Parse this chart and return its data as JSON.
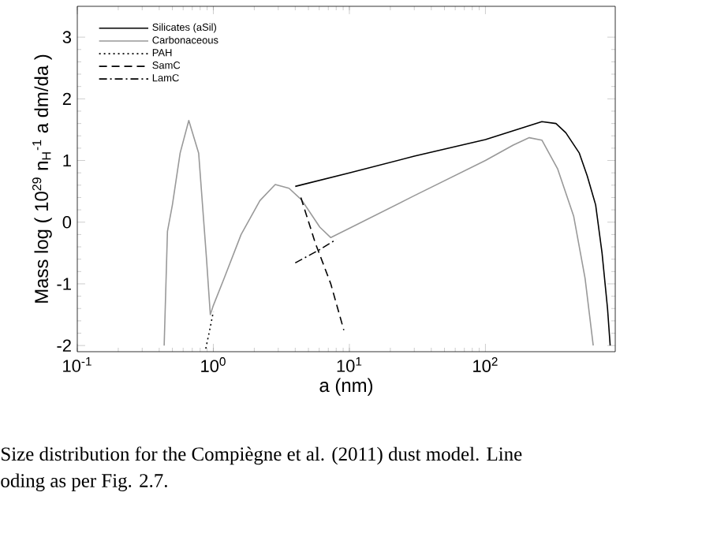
{
  "chart_data": {
    "type": "line",
    "xlabel": "a (nm)",
    "ylabel": "Mass log ( 10$^{29}$ n$_{H}$$^{-1}$ a dm/da )",
    "log": "x",
    "xlim": [
      0.1,
      900
    ],
    "ylim": [
      -2.1,
      3.5
    ],
    "xticks": [
      {
        "value": 0.1,
        "label": "10$^{-1}$"
      },
      {
        "value": 1,
        "label": "10$^{0}$"
      },
      {
        "value": 10,
        "label": "10$^{1}$"
      },
      {
        "value": 100,
        "label": "10$^{2}$"
      }
    ],
    "yticks": [
      -2,
      -1,
      0,
      1,
      2,
      3
    ],
    "legend": "top left",
    "series": [
      {
        "name": "Silicates (aSil)",
        "color": "#000000",
        "line_style": "solid",
        "x": [
          4.0,
          10,
          30,
          100,
          200,
          260,
          330,
          390,
          490,
          560,
          646,
          720,
          790,
          826
        ],
        "values": [
          0.58,
          0.8,
          1.07,
          1.34,
          1.55,
          1.63,
          1.6,
          1.45,
          1.12,
          0.75,
          0.28,
          -0.5,
          -1.4,
          -2.0
        ]
      },
      {
        "name": "Carbonaceous",
        "color": "#999999",
        "line_style": "solid",
        "x": [
          0.435,
          0.46,
          0.5,
          0.57,
          0.66,
          0.78,
          0.89,
          0.95,
          1.0,
          1.2,
          1.6,
          2.2,
          2.85,
          3.6,
          4.46,
          6.06,
          7.3,
          10,
          30,
          100,
          160,
          210,
          260,
          340,
          445,
          540,
          620
        ],
        "values": [
          -2.0,
          -0.15,
          0.28,
          1.12,
          1.65,
          1.12,
          -0.58,
          -1.5,
          -1.35,
          -0.91,
          -0.2,
          0.35,
          0.61,
          0.55,
          0.36,
          -0.08,
          -0.25,
          -0.1,
          0.43,
          1.0,
          1.25,
          1.37,
          1.33,
          0.86,
          0.1,
          -0.91,
          -2.0
        ]
      },
      {
        "name": "PAH",
        "color": "#000000",
        "line_style": "dotted",
        "x": [
          0.88,
          0.95,
          1.0
        ],
        "values": [
          -2.05,
          -1.7,
          -1.45
        ]
      },
      {
        "name": "SamC",
        "color": "#000000",
        "line_style": "dashed",
        "x": [
          4.4,
          5.6,
          7.3,
          9.1
        ],
        "values": [
          0.4,
          -0.33,
          -1.0,
          -1.75
        ]
      },
      {
        "name": "LamC",
        "color": "#000000",
        "line_style": "dashdot",
        "x": [
          4.0,
          6.0,
          8.0
        ],
        "values": [
          -0.66,
          -0.45,
          -0.28
        ]
      }
    ],
    "annotations": [
      "Size distribution for the Compiègne et al. (2011) dust model.  Line",
      "oding as per Fig. 2.7."
    ]
  }
}
